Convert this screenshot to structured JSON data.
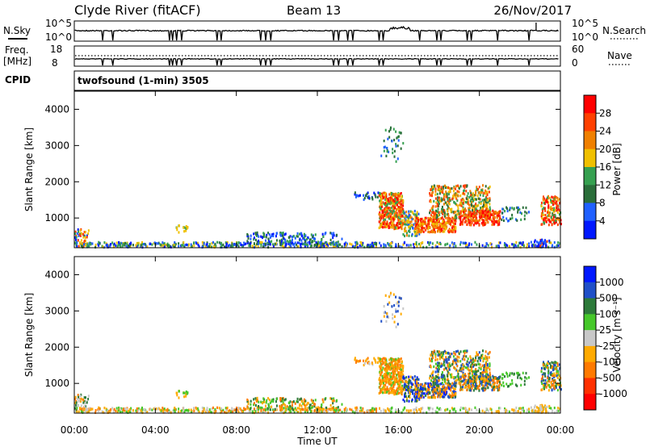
{
  "header": {
    "station": "Clyde River (fitACF)",
    "beam": "Beam 13",
    "date": "26/Nov/2017"
  },
  "summary": {
    "nsky_label": "N.Sky",
    "nsearch_label": "N.Search",
    "freq_label": "Freq.",
    "freq_unit": "[MHz]",
    "nave_label": "Nave",
    "cpid_label": "CPID",
    "noise_ticks": [
      "10^5",
      "10^0"
    ],
    "freq_ticks": [
      "18",
      "8"
    ],
    "nave_ticks": [
      "60",
      "0"
    ],
    "cpid_text": "twofsound (1-min) 3505"
  },
  "colors": {
    "power_scale": [
      "#0018ff",
      "#2060ff",
      "#2a6e3a",
      "#36a050",
      "#f0c000",
      "#f08000",
      "#ff4000",
      "#ff0000"
    ],
    "velocity_scale": [
      "#ff0000",
      "#ff3000",
      "#ff7a00",
      "#ffaa00",
      "#c8c8c8",
      "#46c82a",
      "#2d7a3a",
      "#2050c8",
      "#0018ff"
    ],
    "frame": "#000000"
  },
  "chart_data": [
    {
      "type": "heatmap",
      "title": "",
      "xlabel": "",
      "ylabel": "Slant Range [km]",
      "colorbar_label": "Power [dB]",
      "colorbar_ticks": [
        "28",
        "24",
        "20",
        "16",
        "12",
        "8",
        "4"
      ],
      "xlim": [
        "00:00",
        "24:00"
      ],
      "ylim": [
        180,
        4500
      ],
      "y_ticks": [
        1000,
        2000,
        3000,
        4000
      ]
    },
    {
      "type": "heatmap",
      "title": "",
      "xlabel": "Time UT",
      "ylabel": "Slant Range [km]",
      "colorbar_label": "Velocity [m s⁻¹]",
      "colorbar_ticks": [
        "1000",
        "500",
        "100",
        "25",
        "-25",
        "-100",
        "-500",
        "-1000"
      ],
      "xlim": [
        "00:00",
        "24:00"
      ],
      "ylim": [
        180,
        4500
      ],
      "y_ticks": [
        1000,
        2000,
        3000,
        4000
      ],
      "x_ticks": [
        "00:00",
        "04:00",
        "08:00",
        "12:00",
        "16:00",
        "20:00",
        "00:00"
      ]
    }
  ]
}
